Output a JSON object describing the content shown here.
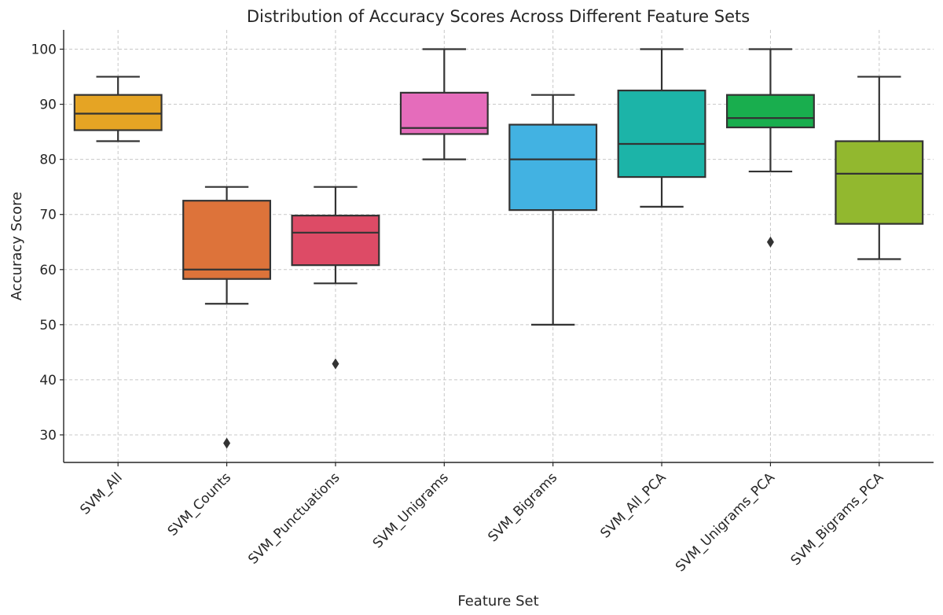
{
  "chart_data": {
    "type": "box",
    "title": "Distribution of Accuracy Scores Across Different Feature Sets",
    "xlabel": "Feature Set",
    "ylabel": "Accuracy Score",
    "ylim": [
      25,
      103.5
    ],
    "yticks": [
      30,
      40,
      50,
      60,
      70,
      80,
      90,
      100
    ],
    "grid": true,
    "categories": [
      "SVM_All",
      "SVM_Counts",
      "SVM_Punctuations",
      "SVM_Unigrams",
      "SVM_Bigrams",
      "SVM_All_PCA",
      "SVM_Unigrams_PCA",
      "SVM_Bigrams_PCA"
    ],
    "boxes": [
      {
        "category": "SVM_All",
        "color": "#E5A424",
        "whisker_low": 83.3,
        "q1": 85.3,
        "median": 88.3,
        "q3": 91.7,
        "whisker_high": 95.0,
        "outliers": []
      },
      {
        "category": "SVM_Counts",
        "color": "#DD733A",
        "whisker_low": 53.8,
        "q1": 58.3,
        "median": 60.0,
        "q3": 72.5,
        "whisker_high": 75.0,
        "outliers": [
          28.5
        ]
      },
      {
        "category": "SVM_Punctuations",
        "color": "#DD4B66",
        "whisker_low": 57.5,
        "q1": 60.8,
        "median": 66.7,
        "q3": 69.8,
        "whisker_high": 75.0,
        "outliers": [
          42.9
        ]
      },
      {
        "category": "SVM_Unigrams",
        "color": "#E56CBB",
        "whisker_low": 80.0,
        "q1": 84.6,
        "median": 85.7,
        "q3": 92.1,
        "whisker_high": 100.0,
        "outliers": []
      },
      {
        "category": "SVM_Bigrams",
        "color": "#42B2E2",
        "whisker_low": 50.0,
        "q1": 70.8,
        "median": 80.0,
        "q3": 86.3,
        "whisker_high": 91.7,
        "outliers": []
      },
      {
        "category": "SVM_All_PCA",
        "color": "#1CB4A8",
        "whisker_low": 71.4,
        "q1": 76.8,
        "median": 82.8,
        "q3": 92.5,
        "whisker_high": 100.0,
        "outliers": []
      },
      {
        "category": "SVM_Unigrams_PCA",
        "color": "#19AE4E",
        "whisker_low": 77.8,
        "q1": 85.8,
        "median": 87.5,
        "q3": 91.7,
        "whisker_high": 100.0,
        "outliers": [
          65.0
        ]
      },
      {
        "category": "SVM_Bigrams_PCA",
        "color": "#92B82F",
        "whisker_low": 61.9,
        "q1": 68.3,
        "median": 77.4,
        "q3": 83.3,
        "whisker_high": 95.0,
        "outliers": []
      }
    ]
  }
}
